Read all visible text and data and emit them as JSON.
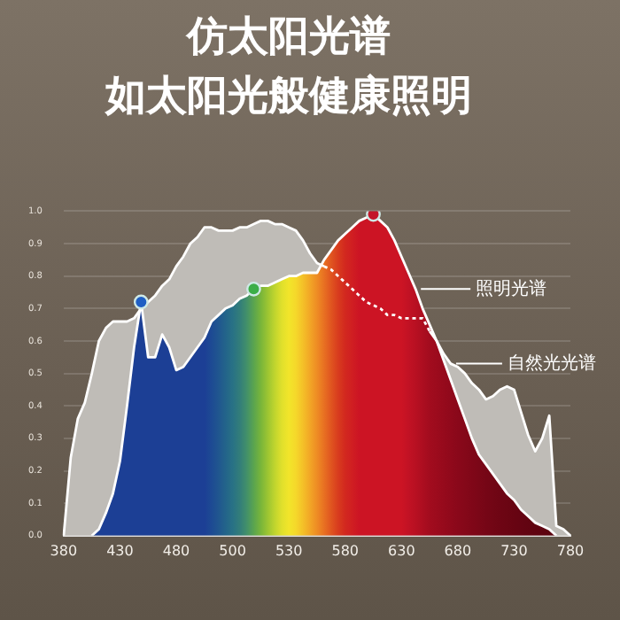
{
  "chart_data": {
    "type": "area",
    "title": "仿太阳光谱",
    "subtitle": "如太阳光般健康照明",
    "categories": [
      "380",
      null,
      null,
      null,
      null,
      null,
      null,
      null,
      "430",
      null,
      null,
      null,
      null,
      null,
      null,
      null,
      "480",
      null,
      null,
      null,
      null,
      null,
      null,
      null,
      "500",
      null,
      null,
      null,
      null,
      null,
      null,
      null,
      "530",
      null,
      null,
      null,
      null,
      null,
      null,
      null,
      "580",
      null,
      null,
      null,
      null,
      null,
      null,
      null,
      "630",
      null,
      null,
      null,
      null,
      null,
      null,
      null,
      "680",
      null,
      null,
      null,
      null,
      null,
      null,
      null,
      "730",
      null,
      null,
      null,
      null,
      null,
      null,
      null,
      "780"
    ],
    "series": [
      {
        "name": "自然光光谱",
        "color": "#bfbcb7",
        "values": [
          0,
          0.24,
          0.36,
          0.41,
          0.5,
          0.6,
          0.64,
          0.66,
          0.66,
          0.66,
          0.67,
          0.7,
          0.72,
          0.74,
          0.77,
          0.79,
          0.83,
          0.86,
          0.9,
          0.92,
          0.95,
          0.95,
          0.94,
          0.94,
          0.94,
          0.95,
          0.95,
          0.96,
          0.97,
          0.97,
          0.96,
          0.96,
          0.95,
          0.94,
          0.91,
          0.87,
          0.84,
          0.83,
          0.82,
          0.8,
          0.78,
          0.76,
          0.74,
          0.72,
          0.71,
          0.7,
          0.68,
          0.68,
          0.67,
          0.67,
          0.67,
          0.67,
          0.63,
          0.6,
          0.56,
          0.53,
          0.52,
          0.5,
          0.47,
          0.45,
          0.42,
          0.43,
          0.45,
          0.46,
          0.45,
          0.38,
          0.31,
          0.26,
          0.3,
          0.37,
          0.03,
          0.02,
          0
        ]
      },
      {
        "name": "照明光谱",
        "color": "#cc1424",
        "values": [
          null,
          null,
          null,
          null,
          0,
          0.02,
          0.07,
          0.13,
          0.23,
          0.4,
          0.58,
          0.72,
          0.55,
          0.55,
          0.62,
          0.58,
          0.51,
          0.52,
          0.55,
          0.58,
          0.61,
          0.66,
          0.68,
          0.7,
          0.71,
          0.73,
          0.74,
          0.76,
          0.77,
          0.77,
          0.78,
          0.79,
          0.8,
          0.8,
          0.81,
          0.81,
          0.81,
          0.85,
          0.88,
          0.91,
          0.93,
          0.95,
          0.97,
          0.98,
          0.99,
          0.97,
          0.95,
          0.91,
          0.86,
          0.81,
          0.76,
          0.7,
          0.65,
          0.6,
          0.54,
          0.48,
          0.42,
          0.36,
          0.3,
          0.25,
          0.22,
          0.19,
          0.16,
          0.13,
          0.11,
          0.08,
          0.06,
          0.04,
          0.03,
          0.02,
          0,
          null,
          null
        ],
        "colors": [
          "#1c3f95",
          "#1c3f95",
          "#1c3f95",
          "#1c3f95",
          "#1c3f95",
          "#1c3f95",
          "#1c3f95",
          "#1c3f95",
          "#1c3f95",
          "#1c3f95",
          "#1c3f95",
          "#1c3f95",
          "#1c3f95",
          "#1c3f95",
          "#1c3f95",
          "#1c3f95",
          "#1c3f95",
          "#1c3f95",
          "#1c3f95",
          "#1c3f95",
          "#1c3f95",
          "#1d4a93",
          "#20568f",
          "#23648a",
          "#287185",
          "#327d7a",
          "#42906a",
          "#5aa44f",
          "#78b53a",
          "#9cc532",
          "#c0d52e",
          "#e0e02c",
          "#f2e52a",
          "#f5d82a",
          "#f4c028",
          "#f2a626",
          "#ee8c24",
          "#e87022",
          "#e05520",
          "#d83c1e",
          "#d2281f",
          "#d01e22",
          "#cc1424",
          "#cc1424",
          "#cc1424",
          "#cc1424",
          "#cc1424",
          "#cc1424",
          "#cc1424",
          "#c21224",
          "#b81022",
          "#ad0e20",
          "#a20c1e",
          "#9c0b1d",
          "#960a1c",
          "#90091b",
          "#8a081a",
          "#850819",
          "#800718",
          "#7b0717",
          "#760616",
          "#720615",
          "#6e0514",
          "#6b0513",
          "#680412",
          "#650412",
          "#620411",
          "#600310",
          "#5e0310",
          "#5c030f",
          "#5a020f",
          "#58020e",
          "#56020e"
        ]
      },
      {
        "type": "scatter",
        "marker": "circle",
        "values": [
          null,
          null,
          null,
          null,
          null,
          null,
          null,
          null,
          null,
          null,
          null,
          0.72,
          null,
          null,
          null,
          null,
          null,
          null,
          null,
          null,
          null,
          null,
          null,
          null,
          null,
          null,
          null,
          0.76,
          null,
          null,
          null,
          null,
          null,
          null,
          null,
          null,
          null,
          null,
          null,
          null,
          null,
          null,
          null,
          null,
          0.99,
          null,
          null,
          null,
          null,
          null,
          null,
          null,
          null,
          null,
          null,
          null,
          null,
          null,
          null,
          null,
          null,
          null,
          null,
          null,
          null,
          null,
          null,
          null,
          null,
          null,
          null,
          null,
          null
        ],
        "colors": [
          null,
          null,
          null,
          null,
          null,
          null,
          null,
          null,
          null,
          null,
          null,
          "#1f5fc4",
          null,
          null,
          null,
          null,
          null,
          null,
          null,
          null,
          null,
          null,
          null,
          null,
          null,
          null,
          null,
          "#3cae48",
          null,
          null,
          null,
          null,
          null,
          null,
          null,
          null,
          null,
          null,
          null,
          null,
          null,
          null,
          null,
          null,
          "#c3162a",
          null,
          null,
          null,
          null,
          null,
          null,
          null,
          null,
          null,
          null,
          null,
          null,
          null,
          null,
          null,
          null,
          null,
          null,
          null,
          null,
          null,
          null,
          null,
          null,
          null,
          null,
          null,
          null
        ]
      }
    ],
    "ylim": [
      0,
      1.0
    ],
    "yticks": [
      {
        "value": 0,
        "label": "0.0"
      },
      0.1,
      0.2,
      0.3,
      0.4,
      0.5,
      0.6,
      0.7,
      0.8,
      0.9,
      {
        "value": 1.0,
        "label": "1.0"
      }
    ],
    "grid": "y",
    "legend": "right"
  }
}
